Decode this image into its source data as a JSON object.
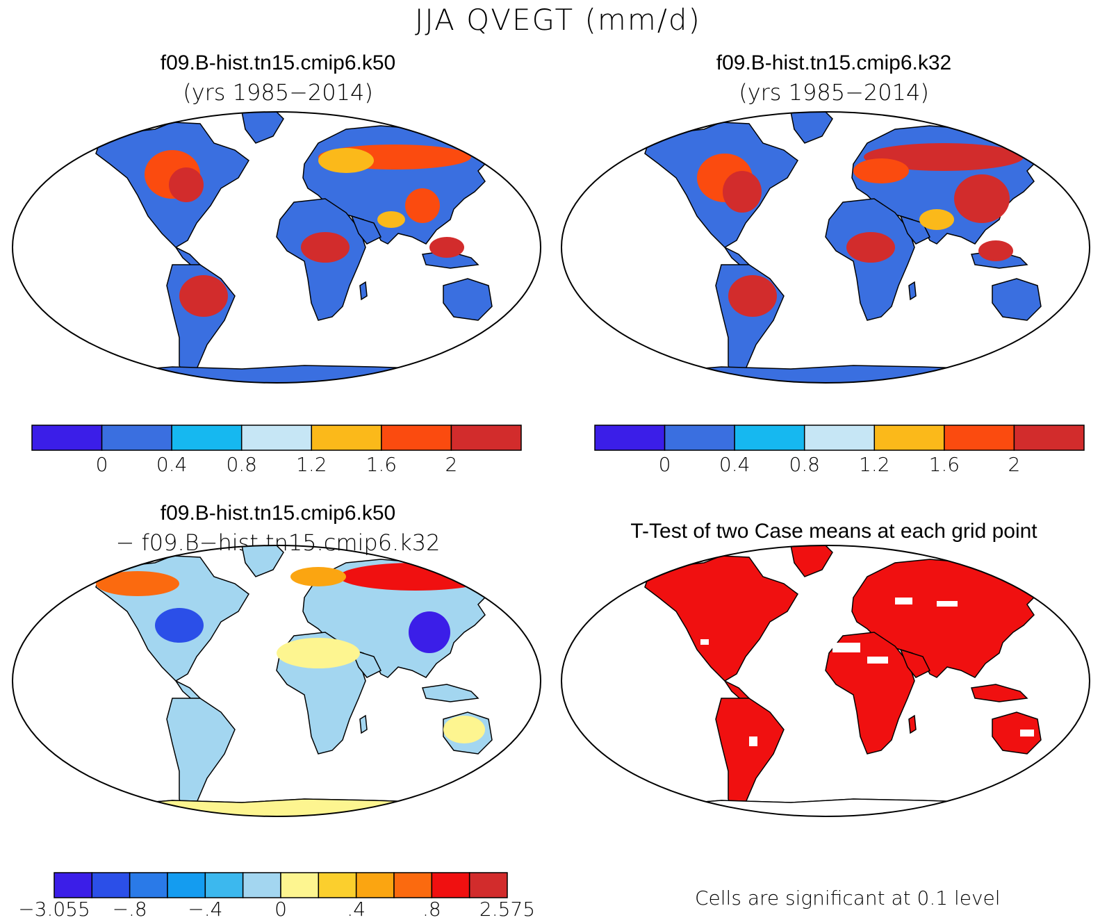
{
  "title": "JJA QVEGT (mm/d)",
  "panels": [
    {
      "title": "f09.B-hist.tn15.cmip6.k50",
      "subtitle": "(yrs 1985−2014)"
    },
    {
      "title": "f09.B-hist.tn15.cmip6.k32",
      "subtitle": "(yrs 1985−2014)"
    },
    {
      "title": "f09.B-hist.tn15.cmip6.k50",
      "subtitle": "− f09.B−hist.tn15.cmip6.k32"
    },
    {
      "title": "T-Test of two Case means at each grid point",
      "subtitle": ""
    }
  ],
  "colorbar_mean": {
    "colors": [
      "#3b1ee8",
      "#3a6fe0",
      "#16b8f0",
      "#c6e6f5",
      "#fbb91a",
      "#fb4b0f",
      "#d22c2c"
    ],
    "tick_labels": [
      "0",
      "0.4",
      "0.8",
      "1.2",
      "1.6",
      "2"
    ]
  },
  "colorbar_diff": {
    "colors": [
      "#3b1ee8",
      "#2b4fe8",
      "#2a7ae8",
      "#149cf0",
      "#3cb8ee",
      "#a3d6f0",
      "#fdf590",
      "#fbcf2d",
      "#fba511",
      "#fb6a0f",
      "#f01010",
      "#d22c2c"
    ],
    "tick_labels": [
      "−3.055",
      "−.8",
      "−.4",
      "0",
      ".4",
      ".8",
      "2.575"
    ]
  },
  "significance_note": "Cells are significant at 0.1 level",
  "map_fill_colors": {
    "panel_a": "#3a6fe0",
    "panel_b": "#3a6fe0",
    "panel_c": "#a3d6f0",
    "panel_d": "#f01010",
    "high": "#d22c2c",
    "mid": "#fb4b0f"
  },
  "chart_data": {
    "type": "heatmap",
    "projection": "Robinson",
    "season": "JJA",
    "variable": "QVEGT",
    "units": "mm/d",
    "mean_contour_levels": [
      0,
      0.4,
      0.8,
      1.2,
      1.6,
      2
    ],
    "diff_contour_levels": [
      -3.055,
      -0.8,
      -0.4,
      0,
      0.4,
      0.8,
      2.575
    ],
    "significance_level": 0.1
  }
}
